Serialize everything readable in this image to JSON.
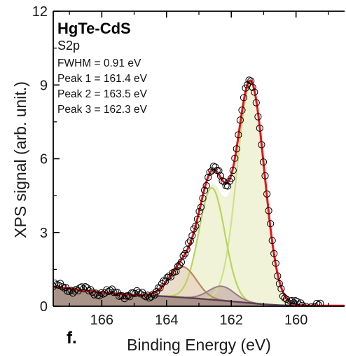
{
  "chart_data": {
    "type": "line",
    "xlabel": "Binding Energy (eV)",
    "ylabel": "XPS signal (arb. unit.)",
    "xlim": [
      167.5,
      158.5
    ],
    "ylim": [
      0,
      12
    ],
    "x_ticks": [
      166,
      164,
      162,
      160
    ],
    "y_ticks": [
      0,
      3,
      6,
      9,
      12
    ],
    "x_reversed": true,
    "grid": false,
    "panel_label": "f.",
    "annotations": {
      "title": "HgTe-CdS",
      "subtitle": "S2p",
      "lines": [
        "FWHM = 0.91 eV",
        "Peak 1 = 161.4 eV",
        "Peak 2 = 163.5 eV",
        "Peak 3 = 162.3 eV"
      ]
    },
    "peaks": [
      {
        "center": 161.4,
        "height": 8.95,
        "sigma": 0.42
      },
      {
        "center": 162.6,
        "height": 4.55,
        "sigma": 0.4
      },
      {
        "center": 163.5,
        "height": 1.25,
        "sigma": 0.42
      },
      {
        "center": 162.3,
        "height": 0.58,
        "sigma": 0.4
      }
    ],
    "background": {
      "x": [
        167.5,
        166,
        165,
        164,
        163,
        162,
        161,
        160.5,
        160,
        159,
        158.5
      ],
      "y": [
        0.8,
        0.56,
        0.46,
        0.4,
        0.31,
        0.2,
        0.08,
        0.04,
        0.03,
        0.02,
        0.02
      ]
    },
    "colors": {
      "envelope": "#e8141b",
      "peak1": "#cfe08a",
      "peak1_fill": "#f0f3d8",
      "peak2": "#b9d45a",
      "peak3": "#b88a60",
      "peak3_fill": "#e9d8c4",
      "peak4": "#9a7a86",
      "background": "#5a3f55",
      "background_fill": "#8a7268",
      "data": "#000000"
    }
  }
}
